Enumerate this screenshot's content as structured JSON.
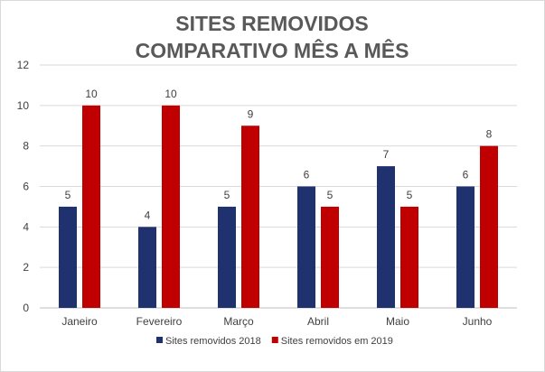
{
  "chart_data": {
    "type": "bar",
    "title_lines": [
      "SITES REMOVIDOS",
      "COMPARATIVO MÊS A MÊS"
    ],
    "categories": [
      "Janeiro",
      "Fevereiro",
      "Março",
      "Abril",
      "Maio",
      "Junho"
    ],
    "series": [
      {
        "name": "Sites removidos 2018",
        "color": "#203170",
        "values": [
          5,
          4,
          5,
          6,
          7,
          6
        ]
      },
      {
        "name": "Sites removidos em 2019",
        "color": "#c00000",
        "values": [
          10,
          10,
          9,
          5,
          5,
          8
        ]
      }
    ],
    "xlabel": "",
    "ylabel": "",
    "ylim": [
      0,
      12
    ],
    "yticks": [
      0,
      2,
      4,
      6,
      8,
      10,
      12
    ],
    "grid": true,
    "legend_position": "bottom",
    "data_labels": true
  }
}
